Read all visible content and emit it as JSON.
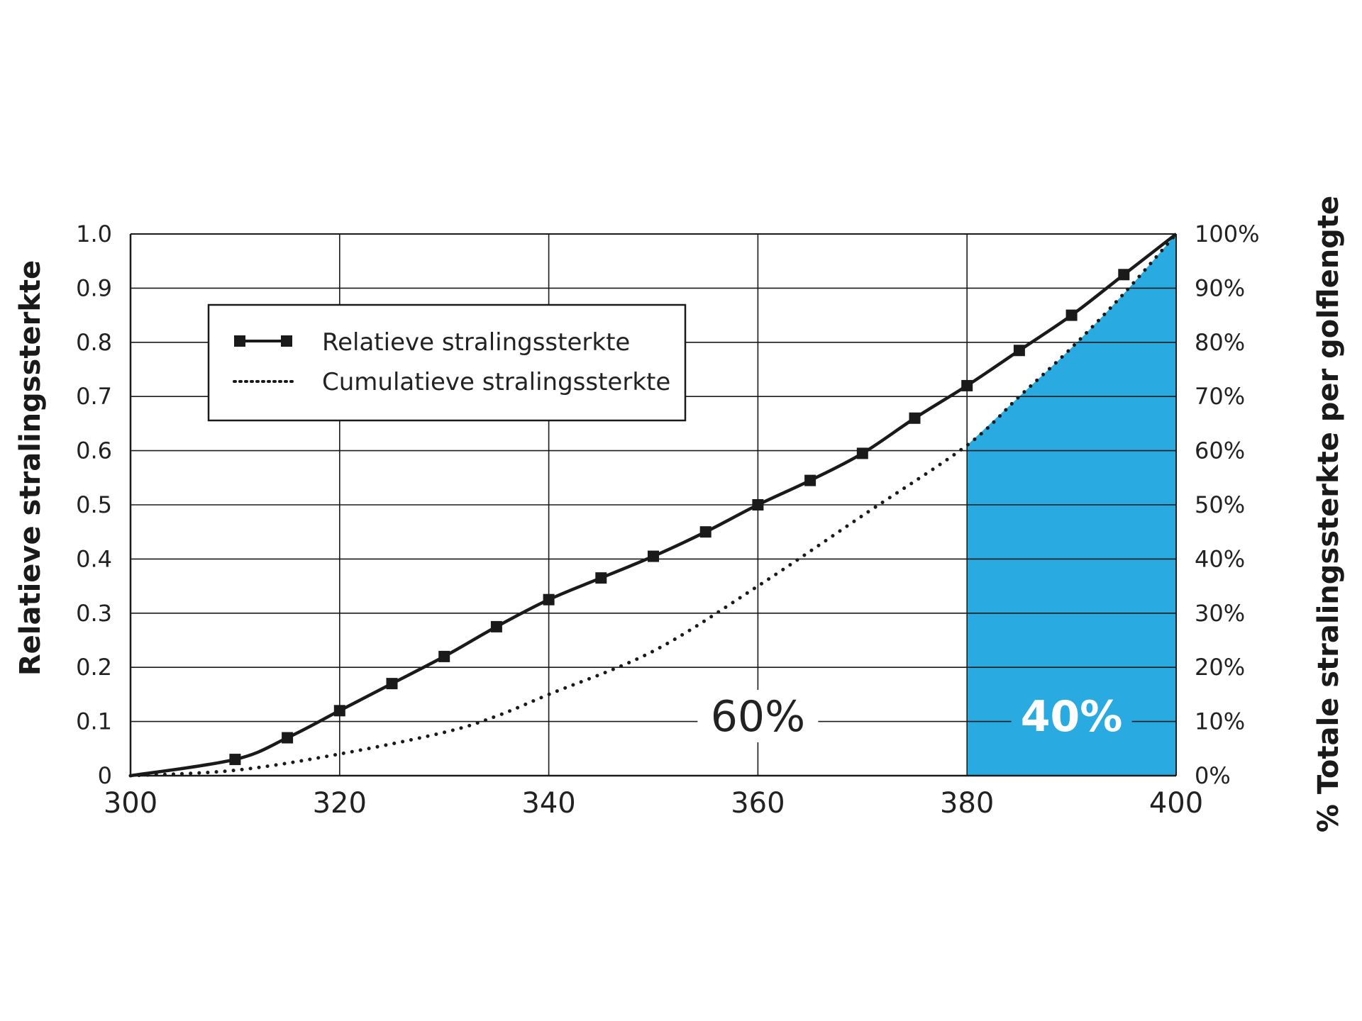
{
  "chart_data": {
    "type": "line",
    "title": "",
    "xlabel": "",
    "ylabel": "Relatieve stralingssterkte",
    "y2label": "% Totale stralingssterkte per golflengte",
    "xlim": [
      300,
      400
    ],
    "ylim": [
      0,
      1.0
    ],
    "y2lim": [
      0,
      100
    ],
    "x_ticks": [
      "300",
      "320",
      "340",
      "360",
      "380",
      "400"
    ],
    "y_ticks": [
      "0",
      "0.1",
      "0.2",
      "0.3",
      "0.4",
      "0.5",
      "0.6",
      "0.7",
      "0.8",
      "0.9",
      "1.0"
    ],
    "y2_ticks": [
      "0%",
      "10%",
      "20%",
      "30%",
      "40%",
      "50%",
      "60%",
      "70%",
      "80%",
      "90%",
      "100%"
    ],
    "grid": "horizontal",
    "legend_position": "top-left",
    "series": [
      {
        "name": "Relatieve stralingssterkte",
        "axis": "left",
        "style": "solid-square-markers",
        "x": [
          300,
          310,
          315,
          320,
          325,
          330,
          335,
          340,
          345,
          350,
          355,
          360,
          365,
          370,
          375,
          380,
          385,
          390,
          395,
          400
        ],
        "values": [
          0.0,
          0.03,
          0.07,
          0.12,
          0.17,
          0.22,
          0.275,
          0.325,
          0.365,
          0.405,
          0.45,
          0.5,
          0.545,
          0.595,
          0.66,
          0.72,
          0.785,
          0.85,
          0.925,
          1.0
        ]
      },
      {
        "name": "Cumulatieve stralingssterkte",
        "axis": "right",
        "style": "dotted",
        "x": [
          300,
          310,
          320,
          330,
          335,
          340,
          350,
          360,
          370,
          380,
          385,
          390,
          395,
          400
        ],
        "values": [
          0,
          1,
          4,
          8,
          11,
          15,
          23,
          35,
          48,
          61,
          70,
          79,
          89,
          100
        ]
      }
    ],
    "shaded_region": {
      "x_start": 380,
      "x_end": 400,
      "color": "#29ABE2"
    },
    "annotations": [
      {
        "text": "60%",
        "x": 360,
        "y": 0.11
      },
      {
        "text": "40%",
        "x": 390,
        "y": 0.11
      }
    ],
    "colors": {
      "line": "#1a1a1a",
      "grid": "#1a1a1a",
      "fill": "#29ABE2"
    }
  }
}
